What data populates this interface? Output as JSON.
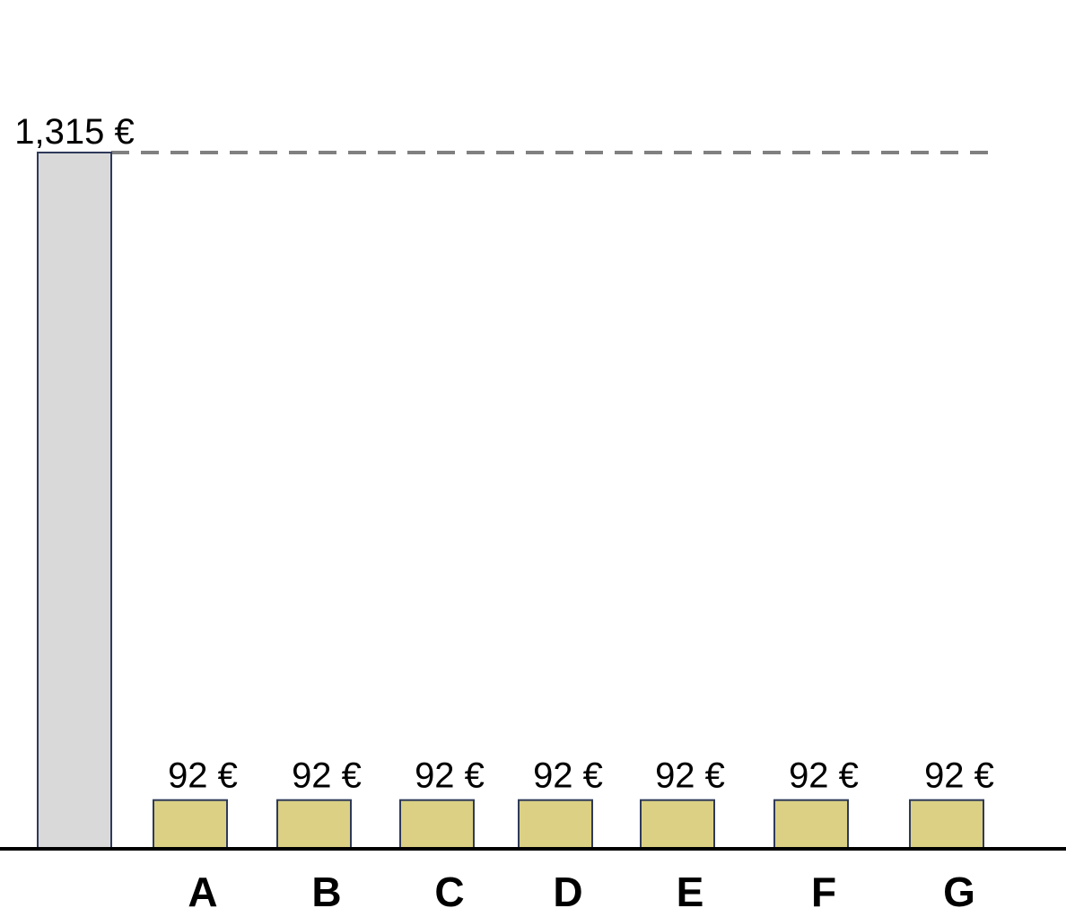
{
  "chart_data": {
    "type": "bar",
    "title": "",
    "xlabel": "",
    "ylabel": "",
    "ylim": [
      0,
      1315
    ],
    "grid": false,
    "legend": "none",
    "reference_line": {
      "value": 1315,
      "style": "dashed"
    },
    "total": {
      "category": "",
      "value": 1315,
      "label": "1,315 €",
      "color": "#d9d9d9"
    },
    "categories": [
      "A",
      "B",
      "C",
      "D",
      "E",
      "F",
      "G"
    ],
    "values": [
      92,
      92,
      92,
      92,
      92,
      92,
      92
    ],
    "labels": [
      "92 €",
      "92 €",
      "92 €",
      "92 €",
      "92 €",
      "92 €",
      "92 €"
    ],
    "bar_color": "#dbd084",
    "edge_color": "#2f3a5a",
    "reference_color": "#808080"
  }
}
